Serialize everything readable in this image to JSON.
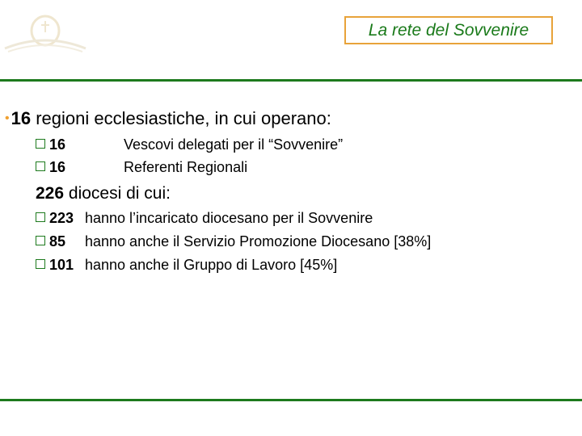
{
  "header": {
    "title": "La rete del Sovvenire",
    "accent_color": "#1d7a1d",
    "box_border_color": "#e8a33a"
  },
  "main": {
    "regioni": {
      "number": "16",
      "text": "regioni ecclesiastiche, in cui operano:"
    },
    "regioni_items": [
      {
        "number": "16",
        "text": "Vescovi delegati per il  “Sovvenire”"
      },
      {
        "number": "16",
        "text": "Referenti Regionali"
      }
    ],
    "diocesi": {
      "number": "226",
      "text": "diocesi di cui:"
    },
    "diocesi_items": [
      {
        "number": "223",
        "text": "hanno l’incaricato diocesano per il Sovvenire"
      },
      {
        "number": "85",
        "text": "hanno anche il Servizio Promozione Diocesano [38%]"
      },
      {
        "number": "101",
        "text": "hanno anche il Gruppo di Lavoro [45%]"
      }
    ]
  }
}
